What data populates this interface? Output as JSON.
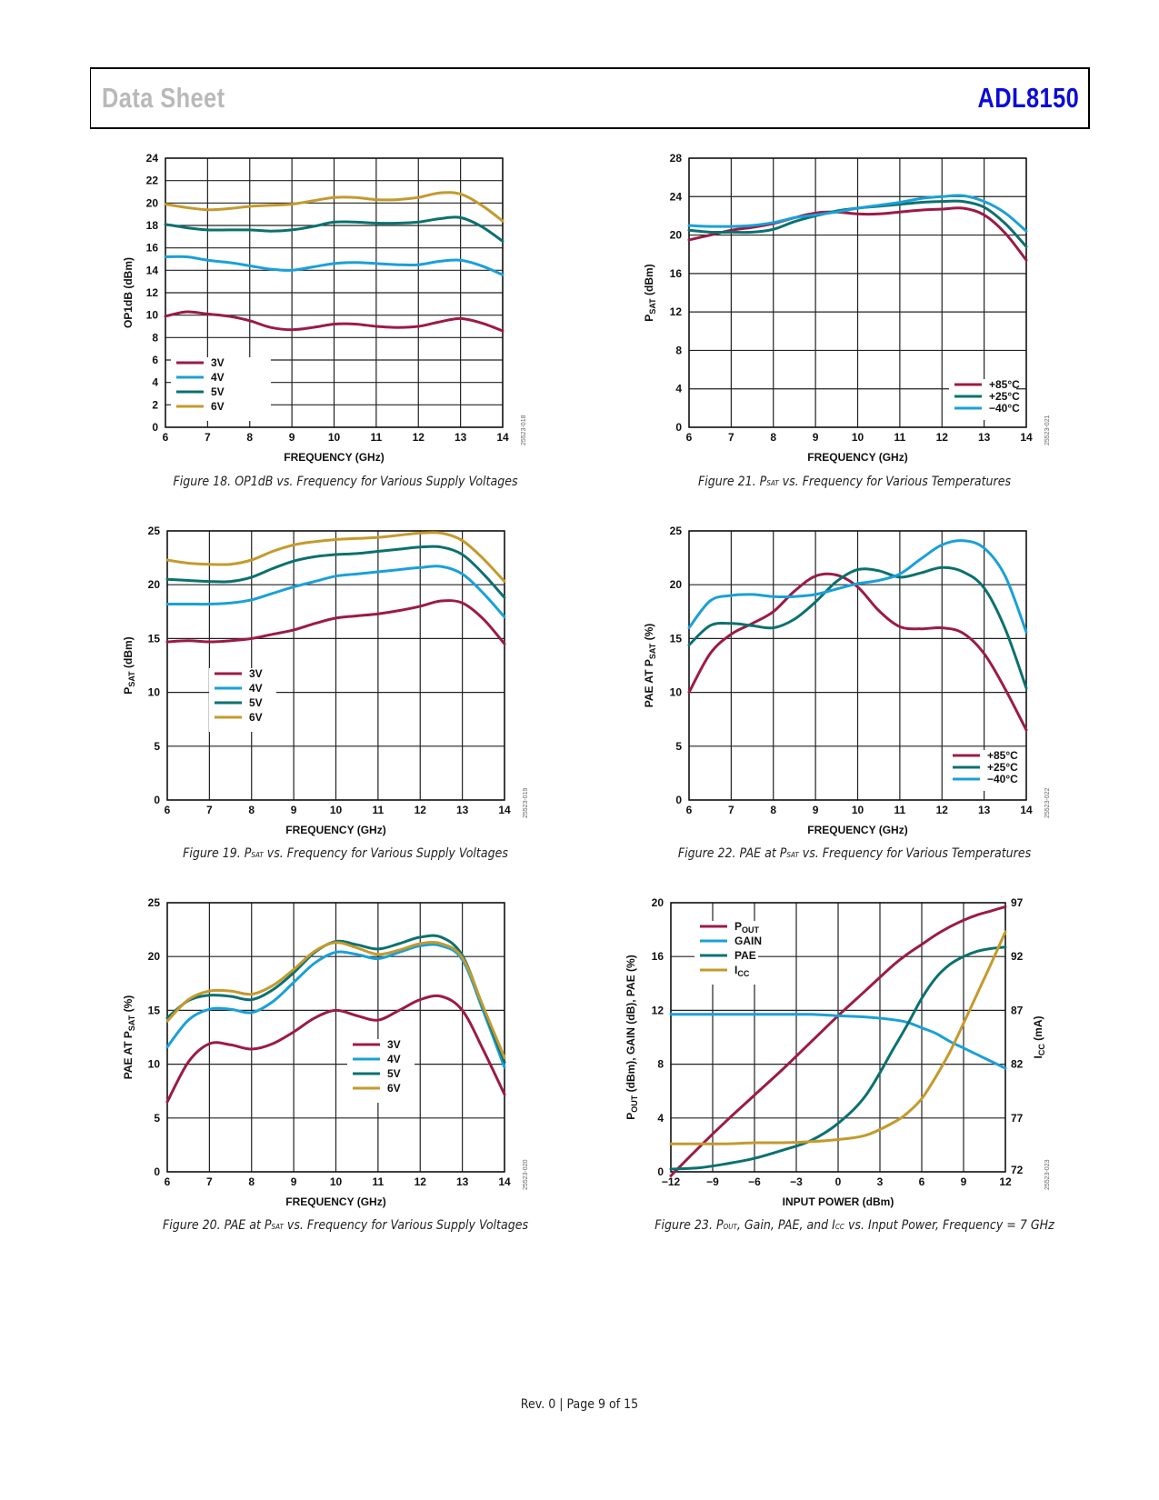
{
  "header": {
    "left_title": "Data Sheet",
    "right_title": "ADL8150"
  },
  "footer": {
    "text": "Rev. 0 | Page 9 of 15"
  },
  "colors": {
    "red": "#9b1b45",
    "blue": "#1aa0d8",
    "teal": "#0b7170",
    "gold": "#c49a2c",
    "header_blue": "#0b0bd6",
    "header_gray": "#b9b9b9"
  },
  "chart_data": [
    {
      "id": "fig18",
      "type": "line",
      "caption": {
        "prefix": "Figure 18. OP1dB vs. Frequency for Various Supply Voltages",
        "sub": "",
        "suffix": ""
      },
      "code": "25523-018",
      "xlabel": "FREQUENCY (GHz)",
      "ylabel": "OP1dB (dBm)",
      "xlim": [
        6,
        14
      ],
      "ylim": [
        0,
        24
      ],
      "xticks": [
        6,
        7,
        8,
        9,
        10,
        11,
        12,
        13,
        14
      ],
      "yticks": [
        0,
        2,
        4,
        6,
        8,
        10,
        12,
        14,
        16,
        18,
        20,
        22,
        24
      ],
      "grid": true,
      "legend": {
        "position": "bottom-left"
      },
      "x": [
        6,
        6.5,
        7,
        7.5,
        8,
        8.5,
        9,
        9.5,
        10,
        10.5,
        11,
        11.5,
        12,
        12.5,
        13,
        13.5,
        14
      ],
      "series": [
        {
          "name": "3V",
          "color": "red",
          "values": [
            9.9,
            10.3,
            10.1,
            9.9,
            9.5,
            8.9,
            8.7,
            8.9,
            9.2,
            9.2,
            9.0,
            8.9,
            9.0,
            9.4,
            9.7,
            9.3,
            8.6
          ]
        },
        {
          "name": "4V",
          "color": "blue",
          "values": [
            15.2,
            15.2,
            14.9,
            14.7,
            14.4,
            14.1,
            14.0,
            14.3,
            14.6,
            14.7,
            14.6,
            14.5,
            14.5,
            14.8,
            14.9,
            14.4,
            13.6
          ]
        },
        {
          "name": "5V",
          "color": "teal",
          "values": [
            18.1,
            17.8,
            17.6,
            17.6,
            17.6,
            17.5,
            17.6,
            17.9,
            18.3,
            18.3,
            18.2,
            18.2,
            18.3,
            18.6,
            18.7,
            17.9,
            16.6
          ]
        },
        {
          "name": "6V",
          "color": "gold",
          "values": [
            19.9,
            19.6,
            19.4,
            19.5,
            19.7,
            19.8,
            19.9,
            20.2,
            20.5,
            20.5,
            20.3,
            20.3,
            20.5,
            20.9,
            20.8,
            19.8,
            18.4
          ]
        }
      ]
    },
    {
      "id": "fig21",
      "type": "line",
      "caption": {
        "prefix": "Figure 21. P",
        "sub": "SAT",
        "suffix": " vs. Frequency for Various Temperatures"
      },
      "code": "25523-021",
      "xlabel": "FREQUENCY (GHz)",
      "ylabel": {
        "main": "P",
        "sub": "SAT",
        "rest": " (dBm)"
      },
      "xlim": [
        6,
        14
      ],
      "ylim": [
        0,
        28
      ],
      "xticks": [
        6,
        7,
        8,
        9,
        10,
        11,
        12,
        13,
        14
      ],
      "yticks": [
        0,
        4,
        8,
        12,
        16,
        20,
        24,
        28
      ],
      "grid": true,
      "legend": {
        "position": "bottom-right"
      },
      "x": [
        6,
        6.5,
        7,
        7.5,
        8,
        8.5,
        9,
        9.5,
        10,
        10.5,
        11,
        11.5,
        12,
        12.5,
        13,
        13.5,
        14
      ],
      "series": [
        {
          "name": "+85°C",
          "color": "red",
          "values": [
            19.5,
            20.0,
            20.5,
            20.8,
            21.2,
            21.8,
            22.3,
            22.4,
            22.2,
            22.2,
            22.4,
            22.6,
            22.7,
            22.8,
            22.1,
            20.2,
            17.4
          ]
        },
        {
          "name": "+25°C",
          "color": "teal",
          "values": [
            20.5,
            20.3,
            20.3,
            20.3,
            20.6,
            21.4,
            22.0,
            22.5,
            22.8,
            23.0,
            23.2,
            23.4,
            23.5,
            23.5,
            22.9,
            21.2,
            18.8
          ]
        },
        {
          "name": "−40°C",
          "color": "blue",
          "values": [
            21.0,
            20.9,
            20.9,
            21.0,
            21.3,
            21.8,
            22.1,
            22.4,
            22.8,
            23.1,
            23.4,
            23.8,
            24.0,
            24.1,
            23.5,
            22.3,
            20.4
          ]
        }
      ]
    },
    {
      "id": "fig19",
      "type": "line",
      "caption": {
        "prefix": "Figure 19. P",
        "sub": "SAT",
        "suffix": " vs. Frequency for Various Supply Voltages"
      },
      "code": "25523-019",
      "xlabel": "FREQUENCY (GHz)",
      "ylabel": {
        "main": "P",
        "sub": "SAT",
        "rest": " (dBm)"
      },
      "xlim": [
        6,
        14
      ],
      "ylim": [
        0,
        25
      ],
      "xticks": [
        6,
        7,
        8,
        9,
        10,
        11,
        12,
        13,
        14
      ],
      "yticks": [
        0,
        5,
        10,
        15,
        20,
        25
      ],
      "grid": true,
      "legend": {
        "position": "center-left"
      },
      "x": [
        6,
        6.5,
        7,
        7.5,
        8,
        8.5,
        9,
        9.5,
        10,
        10.5,
        11,
        11.5,
        12,
        12.5,
        13,
        13.5,
        14
      ],
      "series": [
        {
          "name": "3V",
          "color": "red",
          "values": [
            14.7,
            14.8,
            14.7,
            14.8,
            15.0,
            15.4,
            15.8,
            16.4,
            16.9,
            17.1,
            17.3,
            17.6,
            18.0,
            18.5,
            18.3,
            16.8,
            14.5
          ]
        },
        {
          "name": "4V",
          "color": "blue",
          "values": [
            18.2,
            18.2,
            18.2,
            18.3,
            18.6,
            19.2,
            19.8,
            20.3,
            20.8,
            21.0,
            21.2,
            21.4,
            21.6,
            21.7,
            21.0,
            19.2,
            17.0
          ]
        },
        {
          "name": "5V",
          "color": "teal",
          "values": [
            20.5,
            20.4,
            20.3,
            20.3,
            20.7,
            21.5,
            22.2,
            22.6,
            22.8,
            22.9,
            23.1,
            23.3,
            23.5,
            23.5,
            22.8,
            21.0,
            18.8
          ]
        },
        {
          "name": "6V",
          "color": "gold",
          "values": [
            22.3,
            22.0,
            21.9,
            21.9,
            22.3,
            23.1,
            23.7,
            24.0,
            24.2,
            24.3,
            24.4,
            24.6,
            24.8,
            24.8,
            24.1,
            22.4,
            20.3
          ]
        }
      ]
    },
    {
      "id": "fig22",
      "type": "line",
      "caption": {
        "prefix": "Figure 22. PAE at P",
        "sub": "SAT",
        "suffix": " vs. Frequency for Various Temperatures"
      },
      "code": "25523-022",
      "xlabel": "FREQUENCY (GHz)",
      "ylabel": {
        "main": "PAE AT P",
        "sub": "SAT",
        "rest": " (%)"
      },
      "xlim": [
        6,
        14
      ],
      "ylim": [
        0,
        25
      ],
      "xticks": [
        6,
        7,
        8,
        9,
        10,
        11,
        12,
        13,
        14
      ],
      "yticks": [
        0,
        5,
        10,
        15,
        20,
        25
      ],
      "grid": true,
      "legend": {
        "position": "bottom-right"
      },
      "x": [
        6,
        6.5,
        7,
        7.5,
        8,
        8.5,
        9,
        9.5,
        10,
        10.5,
        11,
        11.5,
        12,
        12.5,
        13,
        13.5,
        14
      ],
      "series": [
        {
          "name": "+85°C",
          "color": "red",
          "values": [
            10.0,
            13.6,
            15.4,
            16.4,
            17.5,
            19.4,
            20.8,
            20.9,
            19.8,
            17.6,
            16.1,
            15.9,
            16.0,
            15.5,
            13.6,
            10.3,
            6.5
          ]
        },
        {
          "name": "+25°C",
          "color": "teal",
          "values": [
            14.4,
            16.2,
            16.4,
            16.2,
            16.0,
            16.8,
            18.4,
            20.3,
            21.4,
            21.3,
            20.7,
            21.1,
            21.6,
            21.2,
            19.7,
            15.9,
            10.4
          ]
        },
        {
          "name": "−40°C",
          "color": "blue",
          "values": [
            16.0,
            18.5,
            19.0,
            19.1,
            18.9,
            18.9,
            19.1,
            19.6,
            20.1,
            20.4,
            21.0,
            22.4,
            23.7,
            24.1,
            23.4,
            20.8,
            15.6
          ]
        }
      ]
    },
    {
      "id": "fig20",
      "type": "line",
      "caption": {
        "prefix": "Figure 20. PAE at P",
        "sub": "SAT",
        "suffix": " vs. Frequency for Various Supply Voltages"
      },
      "code": "25523-020",
      "xlabel": "FREQUENCY (GHz)",
      "ylabel": {
        "main": "PAE AT P",
        "sub": "SAT",
        "rest": " (%)"
      },
      "xlim": [
        6,
        14
      ],
      "ylim": [
        0,
        25
      ],
      "xticks": [
        6,
        7,
        8,
        9,
        10,
        11,
        12,
        13,
        14
      ],
      "yticks": [
        0,
        5,
        10,
        15,
        20,
        25
      ],
      "grid": true,
      "legend": {
        "position": "center"
      },
      "x": [
        6,
        6.5,
        7,
        7.5,
        8,
        8.5,
        9,
        9.5,
        10,
        10.5,
        11,
        11.5,
        12,
        12.5,
        13,
        13.5,
        14
      ],
      "series": [
        {
          "name": "3V",
          "color": "red",
          "values": [
            6.5,
            10.2,
            11.9,
            11.8,
            11.4,
            11.9,
            13.0,
            14.3,
            15.0,
            14.5,
            14.1,
            15.0,
            16.0,
            16.3,
            15.0,
            11.3,
            7.2
          ]
        },
        {
          "name": "4V",
          "color": "blue",
          "values": [
            11.6,
            14.1,
            15.1,
            15.1,
            14.8,
            15.8,
            17.6,
            19.4,
            20.4,
            20.2,
            19.8,
            20.4,
            21.0,
            21.0,
            19.7,
            14.9,
            9.7
          ]
        },
        {
          "name": "5V",
          "color": "teal",
          "values": [
            14.3,
            15.9,
            16.4,
            16.3,
            16.0,
            16.9,
            18.5,
            20.4,
            21.4,
            21.1,
            20.7,
            21.2,
            21.8,
            21.8,
            20.1,
            15.2,
            10.2
          ]
        },
        {
          "name": "6V",
          "color": "gold",
          "values": [
            14.0,
            16.0,
            16.8,
            16.8,
            16.5,
            17.3,
            18.8,
            20.5,
            21.3,
            20.8,
            20.2,
            20.6,
            21.2,
            21.2,
            19.9,
            15.3,
            10.6
          ]
        }
      ]
    },
    {
      "id": "fig23",
      "type": "line",
      "caption": {
        "prefix": "Figure 23. P",
        "sub": "OUT",
        "suffix": ", Gain, PAE, and I",
        "sub2": "CC",
        "suffix2": " vs. Input Power, Frequency = 7 GHz"
      },
      "code": "25523-023",
      "xlabel": "INPUT POWER (dBm)",
      "ylabel": {
        "main": "P",
        "sub": "OUT",
        "rest": " (dBm), GAIN (dB), PAE (%)"
      },
      "y2label": {
        "main": "I",
        "sub": "CC",
        "rest": " (mA)"
      },
      "xlim": [
        -12,
        12
      ],
      "ylim": [
        0,
        20
      ],
      "y2lim": [
        72,
        97
      ],
      "xticks": [
        -12,
        -9,
        -6,
        -3,
        0,
        3,
        6,
        9,
        12
      ],
      "xtick_labels": [
        "−12",
        "−9",
        "−6",
        "−3",
        "0",
        "3",
        "6",
        "9",
        "12"
      ],
      "yticks": [
        0,
        4,
        8,
        12,
        16,
        20
      ],
      "y2ticks": [
        72,
        77,
        82,
        87,
        92,
        97
      ],
      "grid": true,
      "legend": {
        "position": "top-left"
      },
      "x": [
        -12,
        -10,
        -8,
        -6,
        -4,
        -2,
        0,
        2,
        4,
        5,
        6,
        7,
        8,
        9,
        10,
        11,
        12
      ],
      "series": [
        {
          "name": "P",
          "name_sub": "OUT",
          "color": "red",
          "axis": "left",
          "values": [
            -0.3,
            1.8,
            3.8,
            5.7,
            7.6,
            9.6,
            11.6,
            13.5,
            15.4,
            16.2,
            16.9,
            17.6,
            18.2,
            18.7,
            19.1,
            19.4,
            19.7
          ]
        },
        {
          "name": "GAIN",
          "color": "blue",
          "axis": "left",
          "values": [
            11.7,
            11.7,
            11.7,
            11.7,
            11.7,
            11.7,
            11.6,
            11.5,
            11.3,
            11.1,
            10.7,
            10.3,
            9.7,
            9.2,
            8.7,
            8.2,
            7.7
          ]
        },
        {
          "name": "PAE",
          "color": "teal",
          "axis": "left",
          "values": [
            0.2,
            0.3,
            0.6,
            1.0,
            1.6,
            2.3,
            3.6,
            5.7,
            9.2,
            11.0,
            12.9,
            14.4,
            15.4,
            16.0,
            16.4,
            16.6,
            16.7
          ]
        },
        {
          "name": "I",
          "name_sub": "CC",
          "color": "gold",
          "axis": "right",
          "values": [
            74.6,
            74.6,
            74.6,
            74.7,
            74.7,
            74.8,
            75.0,
            75.4,
            76.6,
            77.5,
            78.8,
            80.8,
            83.1,
            85.8,
            88.6,
            91.4,
            94.3
          ]
        }
      ]
    }
  ]
}
